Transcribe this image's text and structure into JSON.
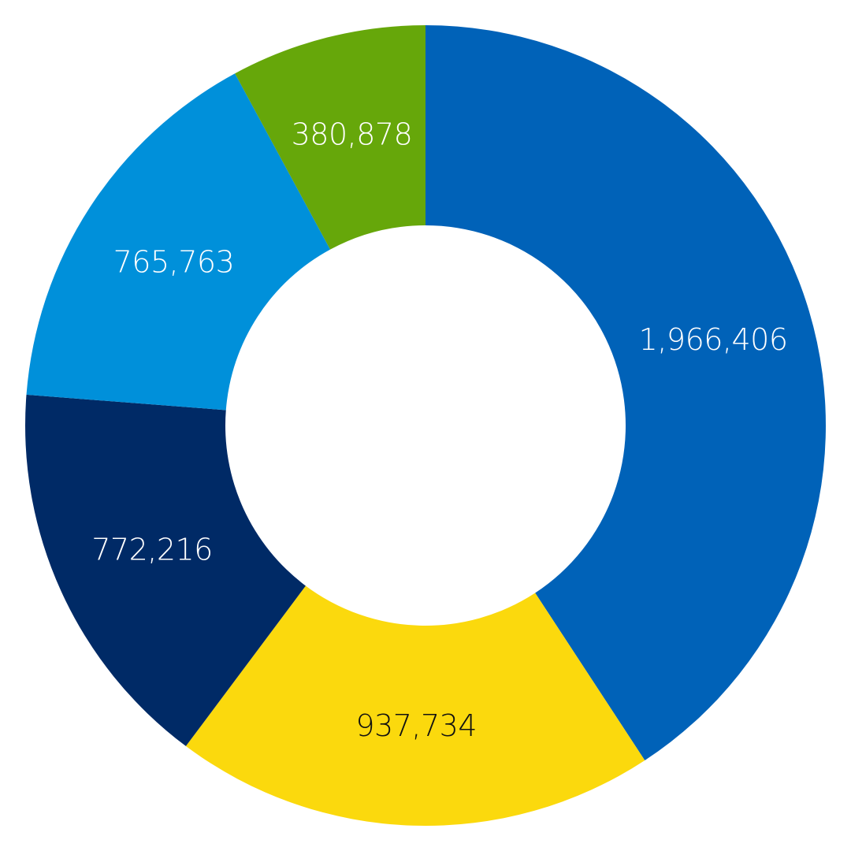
{
  "chart_data": {
    "type": "pie",
    "variant": "donut",
    "slices": [
      {
        "value": 1966406,
        "label": "1,966,406",
        "color": "#0062B8",
        "label_color": "#ffffff"
      },
      {
        "value": 937734,
        "label": "937,734",
        "color": "#FBD90D",
        "label_color": "#111111"
      },
      {
        "value": 772216,
        "label": "772,216",
        "color": "#002A66",
        "label_color": "#ffffff"
      },
      {
        "value": 765763,
        "label": "765,763",
        "color": "#0090DA",
        "label_color": "#ffffff"
      },
      {
        "value": 380878,
        "label": "380,878",
        "color": "#66A70A",
        "label_color": "#ffffff"
      }
    ],
    "start_angle": "top",
    "direction": "clockwise",
    "legend": "none"
  }
}
